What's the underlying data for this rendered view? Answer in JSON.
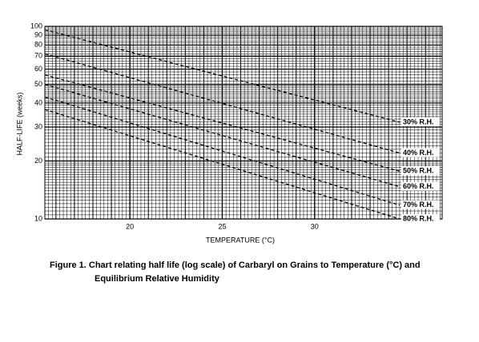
{
  "chart_data": {
    "type": "line",
    "caption": [
      "Figure 1.  Chart relating half life (log scale) of Carbaryl on Grains to Temperature  (°C) and",
      "Equilibrium Relative Humidity"
    ],
    "x_label": "TEMPERATURE  (°C)",
    "y_label": "HALF-LIFE  (weeks)",
    "x": [
      15.4,
      34.6
    ],
    "series": [
      {
        "name": "30% R.H.",
        "color": "#000000",
        "values": [
          96,
          31.8
        ]
      },
      {
        "name": "40% R.H.",
        "color": "#000000",
        "values": [
          72,
          22
        ]
      },
      {
        "name": "50% R.H.",
        "color": "#000000",
        "values": [
          56,
          17.7
        ]
      },
      {
        "name": "60% R.H.",
        "color": "#000000",
        "values": [
          50,
          14.7
        ]
      },
      {
        "name": "70% R.H.",
        "color": "#000000",
        "values": [
          43,
          11.8
        ]
      },
      {
        "name": "80% R.H.",
        "color": "#000000",
        "values": [
          37,
          10
        ]
      }
    ],
    "xlim": [
      15.4,
      36.9
    ],
    "xticks": [
      20,
      25,
      30
    ],
    "ylim": [
      10,
      100
    ],
    "yticks": [
      10,
      20,
      30,
      40,
      50,
      60,
      70,
      80,
      90,
      100
    ],
    "log_y": true,
    "grid": true
  }
}
